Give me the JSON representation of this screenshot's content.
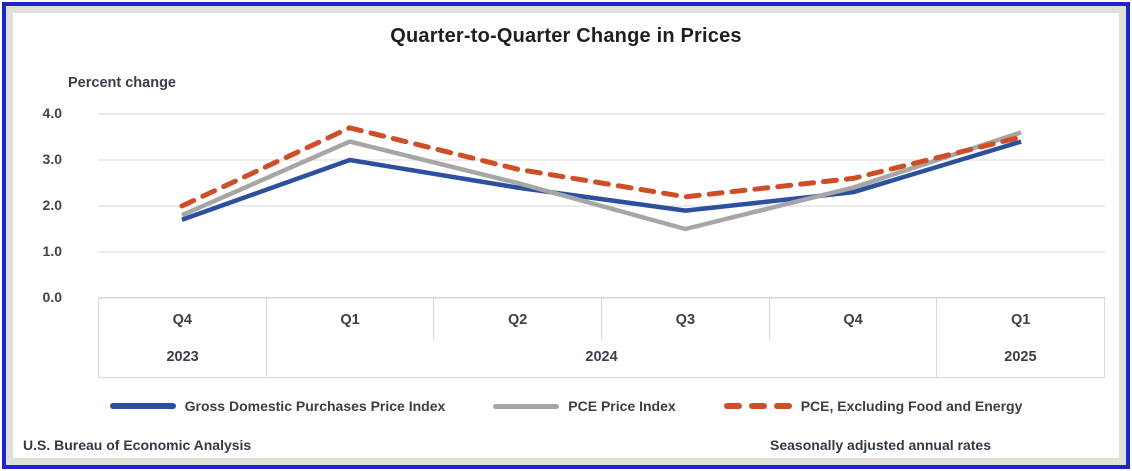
{
  "frame": {
    "border_color": "#1f24c7",
    "mat_color": "#e0dfd9"
  },
  "footnotes": {
    "source": "U.S. Bureau of Economic Analysis",
    "adjustment": "Seasonally adjusted annual rates"
  },
  "chart_data": {
    "type": "line",
    "title": "Quarter-to-Quarter Change in Prices",
    "ylabel": "Percent change",
    "xlabel": "",
    "ylim": [
      0.0,
      4.0
    ],
    "ytick_step": 1.0,
    "yticks": [
      "4.0",
      "3.0",
      "2.0",
      "1.0",
      "0.0"
    ],
    "grid": true,
    "legend_position": "bottom",
    "gridline_color": "#d9d9d9",
    "x_quarters": [
      "Q4",
      "Q1",
      "Q2",
      "Q3",
      "Q4",
      "Q1"
    ],
    "x_year_groups": [
      {
        "label": "2023",
        "span": 1
      },
      {
        "label": "2024",
        "span": 4
      },
      {
        "label": "2025",
        "span": 1
      }
    ],
    "categories": [
      "Q4 2023",
      "Q1 2024",
      "Q2 2024",
      "Q3 2024",
      "Q4 2024",
      "Q1 2025"
    ],
    "series": [
      {
        "name": "Gross Domestic Purchases Price Index",
        "color": "#2c4f9e",
        "style": "solid",
        "values": [
          1.7,
          3.0,
          2.4,
          1.9,
          2.3,
          3.4
        ]
      },
      {
        "name": "PCE Price Index",
        "color": "#a6a6a6",
        "style": "solid",
        "values": [
          1.8,
          3.4,
          2.5,
          1.5,
          2.4,
          3.6
        ]
      },
      {
        "name": "PCE, Excluding Food and Energy",
        "color": "#cf4e28",
        "style": "dashed",
        "values": [
          2.0,
          3.7,
          2.8,
          2.2,
          2.6,
          3.5
        ]
      }
    ]
  }
}
